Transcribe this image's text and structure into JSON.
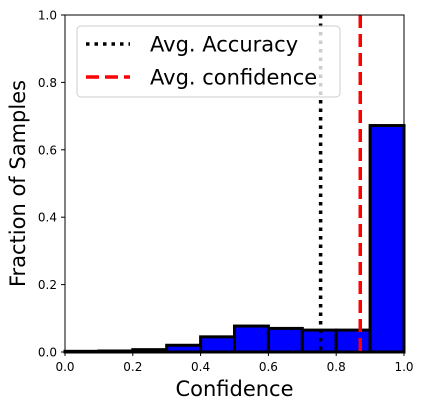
{
  "chart_data": {
    "type": "bar",
    "title": "",
    "xlabel": "Confidence",
    "ylabel": "Fraction of Samples",
    "xlim": [
      0.0,
      1.0
    ],
    "ylim": [
      0.0,
      1.0
    ],
    "grid": false,
    "bin_edges": [
      0.0,
      0.1,
      0.2,
      0.3,
      0.4,
      0.5,
      0.6,
      0.7,
      0.8,
      0.9,
      1.0
    ],
    "values": [
      0.002,
      0.003,
      0.007,
      0.02,
      0.045,
      0.077,
      0.07,
      0.065,
      0.065,
      0.672
    ],
    "bar_color": "#0000ff",
    "edge_color": "#000000",
    "x_ticks": [
      "0.0",
      "0.2",
      "0.4",
      "0.6",
      "0.8",
      "1.0"
    ],
    "y_ticks": [
      "0.0",
      "0.2",
      "0.4",
      "0.6",
      "0.8",
      "1.0"
    ],
    "reference_lines": [
      {
        "label": "Avg. Accuracy",
        "x": 0.754,
        "color": "#000000",
        "style": "dotted"
      },
      {
        "label": "Avg. confidence",
        "x": 0.871,
        "color": "#ff0000",
        "style": "dashed"
      }
    ],
    "legend": {
      "placement": "top-left"
    }
  }
}
